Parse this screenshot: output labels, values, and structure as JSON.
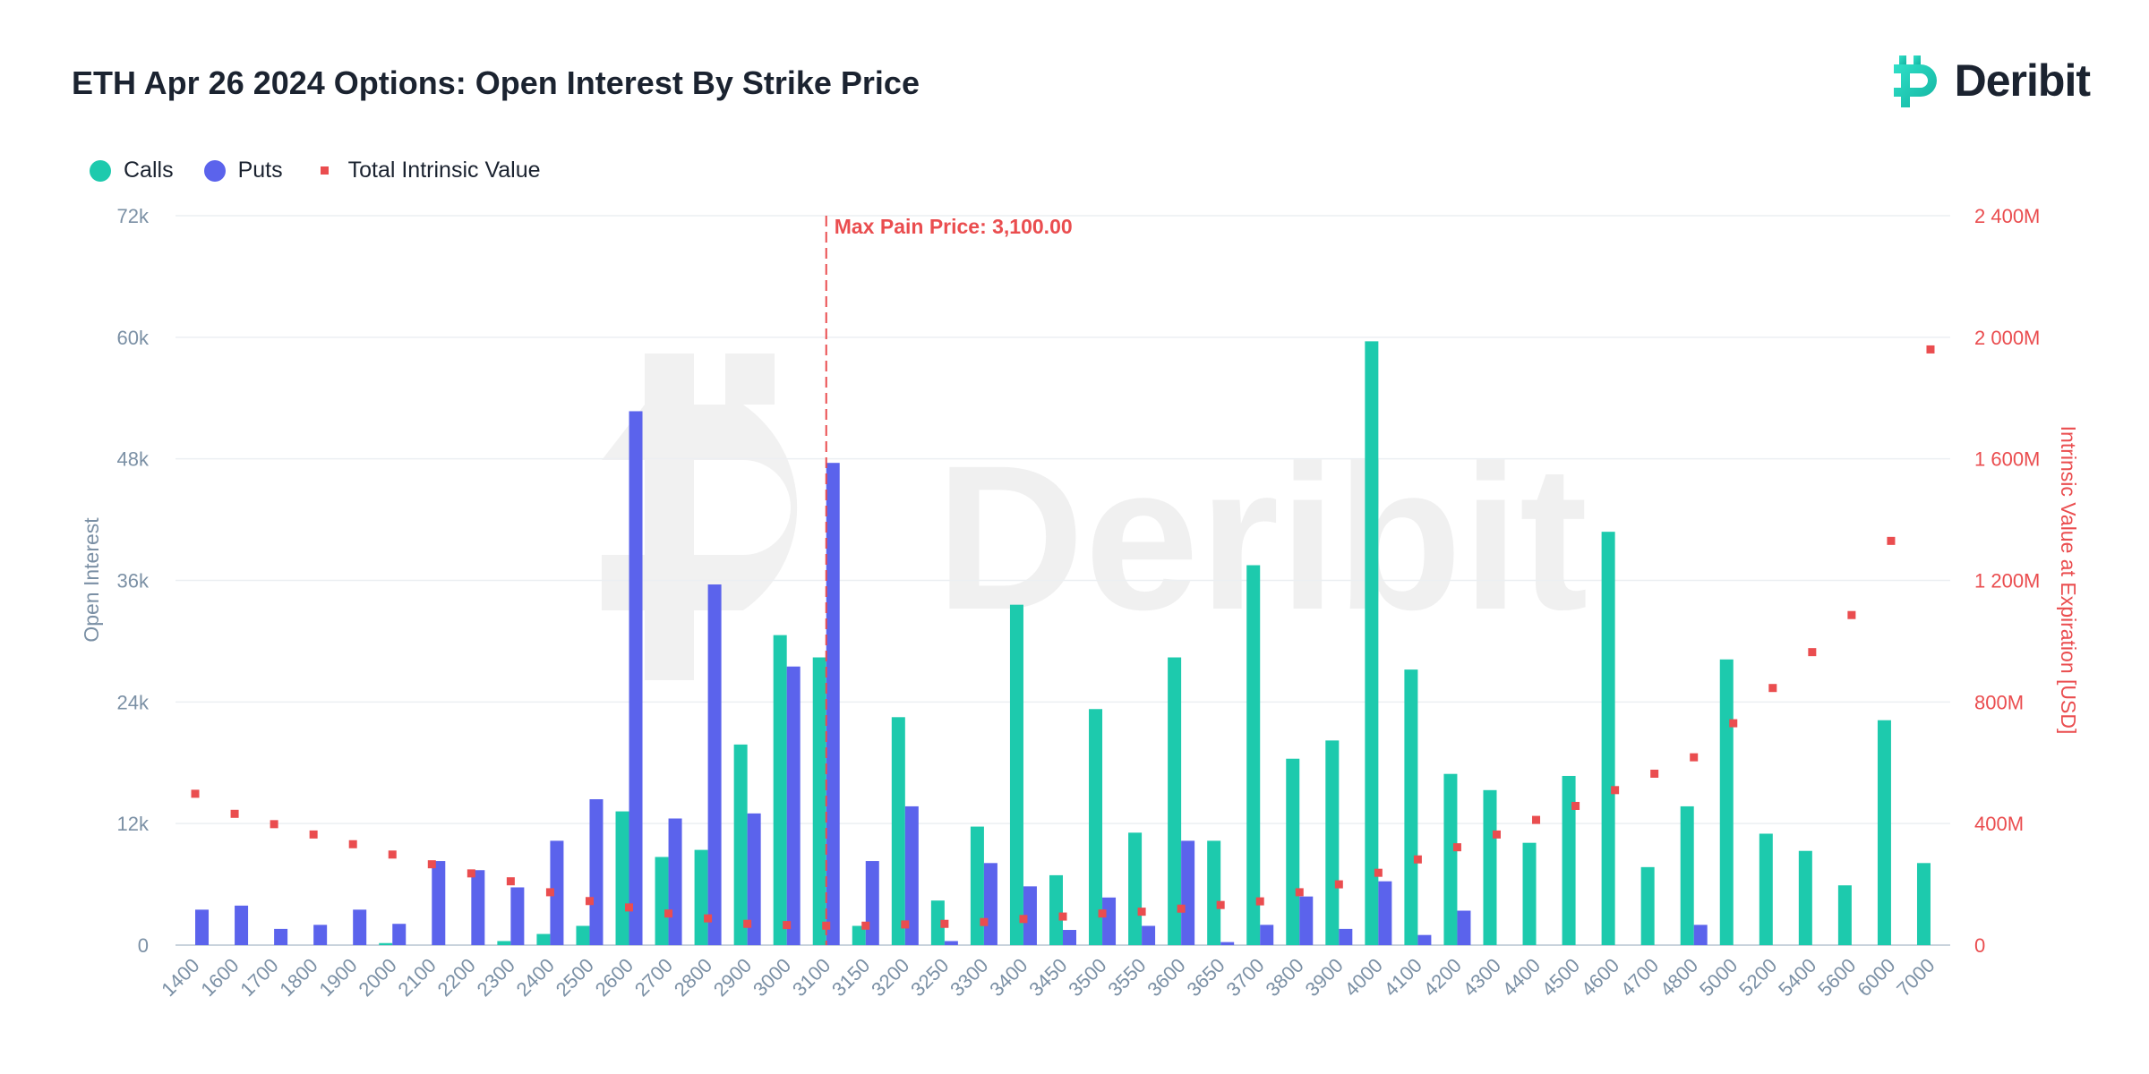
{
  "header": {
    "title": "ETH Apr 26 2024 Options: Open Interest By Strike Price"
  },
  "logo": {
    "text": "Deribit",
    "watermark_text": "Deribit"
  },
  "legend": {
    "calls": "Calls",
    "puts": "Puts",
    "intrinsic": "Total Intrinsic Value"
  },
  "colors": {
    "calls": "#1dcaad",
    "puts": "#5b63ec",
    "intrinsic": "#ea4d4f",
    "axis": "#7b90a5"
  },
  "chart_data": {
    "type": "bar",
    "title": "ETH Apr 26 2024 Options: Open Interest By Strike Price",
    "xlabel": "",
    "ylabel": "Open Interest",
    "y2label": "Intrinsic Value at Expiration [USD]",
    "ylim": [
      0,
      72000
    ],
    "y2lim": [
      0,
      2400000000
    ],
    "yticks": [
      "0",
      "12k",
      "24k",
      "36k",
      "48k",
      "60k",
      "72k"
    ],
    "y2ticks": [
      "0",
      "400M",
      "800M",
      "1 200M",
      "1 600M",
      "2 000M",
      "2 400M"
    ],
    "grid": true,
    "legend_position": "top-left",
    "annotation": {
      "label": "Max Pain Price: 3,100.00",
      "strike": "3100"
    },
    "categories": [
      "1400",
      "1600",
      "1700",
      "1800",
      "1900",
      "2000",
      "2100",
      "2200",
      "2300",
      "2400",
      "2500",
      "2600",
      "2700",
      "2800",
      "2900",
      "3000",
      "3100",
      "3150",
      "3200",
      "3250",
      "3300",
      "3400",
      "3450",
      "3500",
      "3550",
      "3600",
      "3650",
      "3700",
      "3800",
      "3900",
      "4000",
      "4100",
      "4200",
      "4300",
      "4400",
      "4500",
      "4600",
      "4700",
      "4800",
      "5000",
      "5200",
      "5400",
      "5600",
      "6000",
      "7000"
    ],
    "series": [
      {
        "name": "Calls",
        "type": "bar",
        "values": [
          0,
          0,
          0,
          0,
          0,
          200,
          0,
          0,
          400,
          1100,
          1900,
          13200,
          8700,
          9400,
          19800,
          30600,
          28400,
          1900,
          22500,
          4400,
          11700,
          33600,
          6900,
          23300,
          11100,
          28400,
          10300,
          37500,
          18400,
          20200,
          59600,
          27200,
          16900,
          15300,
          10100,
          16700,
          40800,
          7700,
          13700,
          28200,
          11000,
          9300,
          5900,
          22200,
          8100
        ]
      },
      {
        "name": "Puts",
        "type": "bar",
        "values": [
          3500,
          3900,
          1600,
          2000,
          3500,
          2100,
          8300,
          7400,
          5700,
          10300,
          14400,
          52700,
          12500,
          35600,
          13000,
          27500,
          47600,
          8300,
          13700,
          400,
          8100,
          5800,
          1500,
          4700,
          1900,
          10300,
          300,
          2000,
          4800,
          1600,
          6300,
          1000,
          3400,
          0,
          0,
          0,
          0,
          0,
          2000,
          0,
          0,
          0,
          0,
          0,
          0
        ]
      },
      {
        "name": "Total Intrinsic Value",
        "type": "scatter",
        "axis": "y2",
        "values": [
          498000000,
          432000000,
          398000000,
          364000000,
          332000000,
          298000000,
          266000000,
          236000000,
          210000000,
          174000000,
          145000000,
          124000000,
          104000000,
          88000000,
          70000000,
          66000000,
          64000000,
          64000000,
          68000000,
          70000000,
          76000000,
          86000000,
          94000000,
          104000000,
          110000000,
          120000000,
          132000000,
          144000000,
          174000000,
          200000000,
          238000000,
          282000000,
          322000000,
          364000000,
          412000000,
          458000000,
          510000000,
          564000000,
          618000000,
          730000000,
          846000000,
          964000000,
          1086000000,
          1330000000,
          1960000000
        ]
      }
    ]
  }
}
